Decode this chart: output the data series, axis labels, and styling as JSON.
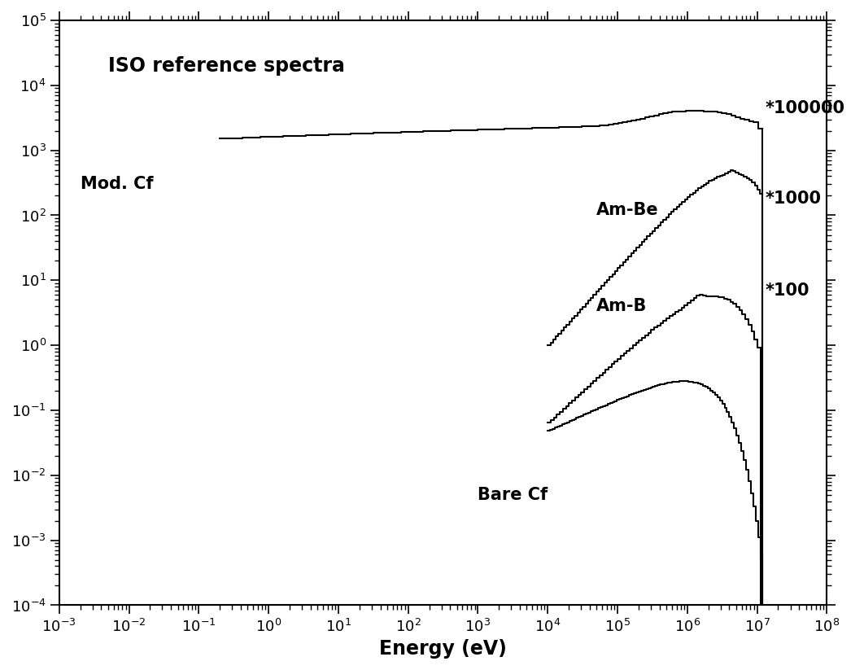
{
  "title": "ISO reference spectra",
  "xlabel": "Energy (eV)",
  "ylabel": "",
  "xlim_log": [
    -3,
    8
  ],
  "ylim_log": [
    -4,
    5
  ],
  "background_color": "#ffffff",
  "text_color": "#000000",
  "line_color": "#000000",
  "annotations": [
    {
      "text": "ISO reference spectra",
      "x_data": 0.005,
      "y_data": 20000.0,
      "fontsize": 17,
      "fontweight": "bold"
    },
    {
      "text": "Mod. Cf",
      "x_data": 0.002,
      "y_data": 300.0,
      "fontsize": 15,
      "fontweight": "bold"
    },
    {
      "text": "Am-Be",
      "x_data": 50000.0,
      "y_data": 120.0,
      "fontsize": 15,
      "fontweight": "bold"
    },
    {
      "text": "Am-B",
      "x_data": 50000.0,
      "y_data": 4.0,
      "fontsize": 15,
      "fontweight": "bold"
    },
    {
      "text": "Bare Cf",
      "x_data": 1000.0,
      "y_data": 0.005,
      "fontsize": 15,
      "fontweight": "bold"
    },
    {
      "text": "*100000",
      "x_data": 13000000.0,
      "y_data": 4500.0,
      "fontsize": 15,
      "fontweight": "bold"
    },
    {
      "text": "*1000",
      "x_data": 13000000.0,
      "y_data": 180.0,
      "fontsize": 15,
      "fontweight": "bold"
    },
    {
      "text": "*100",
      "x_data": 13000000.0,
      "y_data": 7.0,
      "fontsize": 15,
      "fontweight": "bold"
    }
  ],
  "lw": 1.5
}
